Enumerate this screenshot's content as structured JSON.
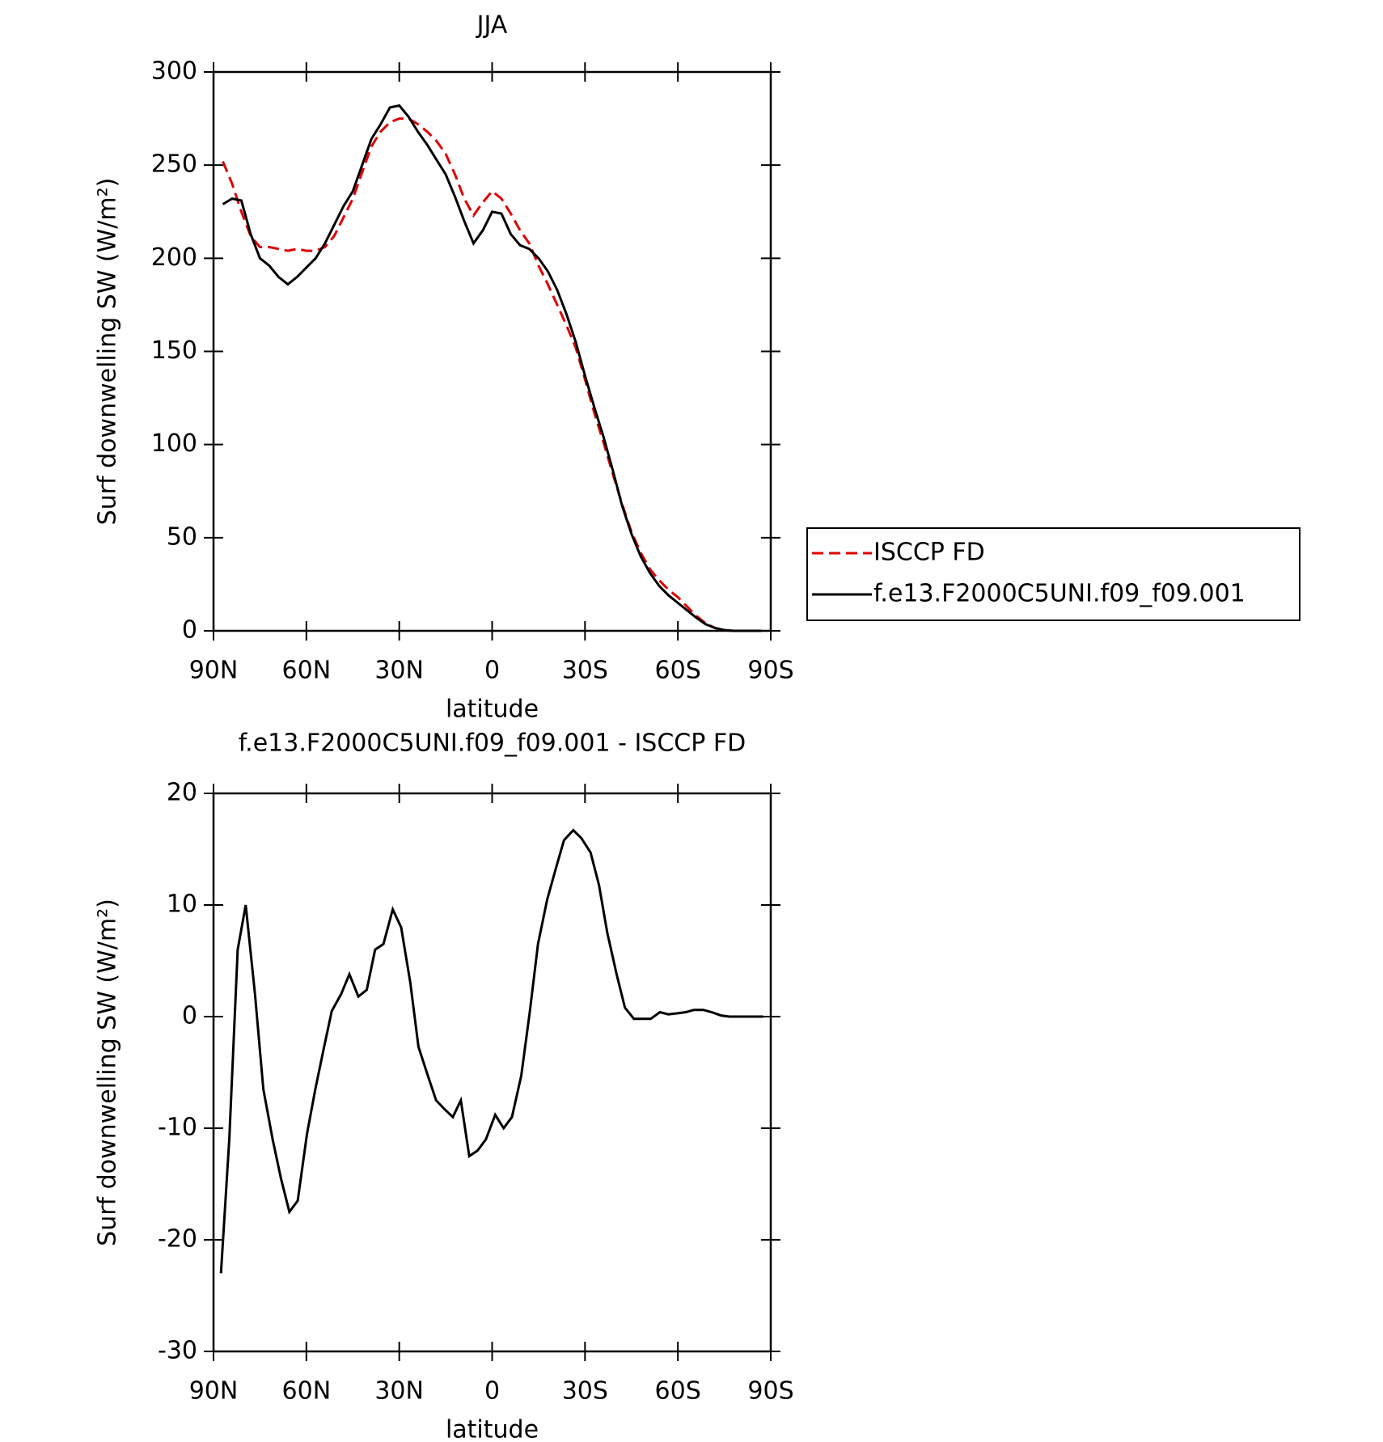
{
  "chart_data": [
    {
      "type": "line",
      "title": "JJA",
      "xlabel": "latitude",
      "ylabel": "Surf downwelling SW (W/m²)",
      "xlim": [
        90,
        -90
      ],
      "ylim": [
        0,
        300
      ],
      "xticks": [
        {
          "value": 90,
          "label": "90N"
        },
        {
          "value": 60,
          "label": "60N"
        },
        {
          "value": 30,
          "label": "30N"
        },
        0,
        {
          "value": -30,
          "label": "30S"
        },
        {
          "value": -60,
          "label": "60S"
        },
        {
          "value": -90,
          "label": "90S"
        }
      ],
      "yticks": [
        0,
        50,
        100,
        150,
        200,
        250,
        300
      ],
      "legend": "right",
      "x": [
        87,
        84,
        81,
        78,
        75,
        72,
        69,
        66,
        63,
        60,
        57,
        54,
        51,
        48,
        45,
        42,
        39,
        36,
        33,
        30,
        27,
        24,
        21,
        18,
        15,
        12,
        9,
        6,
        3,
        0,
        -3,
        -6,
        -9,
        -12,
        -15,
        -18,
        -21,
        -24,
        -27,
        -30,
        -33,
        -36,
        -39,
        -42,
        -45,
        -48,
        -51,
        -54,
        -57,
        -60,
        -63,
        -66,
        -69,
        -72,
        -75,
        -78,
        -81,
        -84,
        -87
      ],
      "series": [
        {
          "name": "ISCCP FD",
          "color": "#e00000",
          "style": "dashed",
          "values": [
            252,
            240,
            225,
            212,
            206,
            206,
            205,
            204,
            205,
            204,
            204,
            206,
            212,
            222,
            232,
            246,
            260,
            268,
            273,
            275,
            275,
            272,
            268,
            263,
            256,
            245,
            232,
            223,
            230,
            236,
            232,
            224,
            215,
            208,
            196,
            186,
            175,
            164,
            152,
            135,
            117,
            101,
            84,
            68,
            53,
            42,
            33,
            27,
            22,
            18,
            13,
            8,
            4,
            1.5,
            0.3,
            0,
            0,
            0,
            0
          ]
        },
        {
          "name": "f.e13.F2000C5UNI.f09_f09.001",
          "color": "#000000",
          "style": "solid",
          "values": [
            229,
            232,
            231,
            213,
            200,
            196,
            190,
            186,
            190,
            195,
            200,
            208,
            218,
            228,
            236,
            250,
            264,
            272,
            281,
            282,
            276,
            268,
            261,
            253,
            245,
            233,
            220,
            208,
            215,
            225,
            224,
            213,
            207,
            205,
            200,
            193,
            183,
            170,
            155,
            137,
            120,
            104,
            86,
            67,
            52,
            40,
            31,
            24,
            19,
            15,
            11,
            7,
            3.5,
            1.5,
            0.4,
            0,
            0,
            0,
            0
          ]
        }
      ]
    },
    {
      "type": "line",
      "title": "f.e13.F2000C5UNI.f09_f09.001 - ISCCP FD",
      "xlabel": "latitude",
      "ylabel": "Surf downwelling SW (W/m²)",
      "xlim": [
        90,
        -90
      ],
      "ylim": [
        -30,
        20
      ],
      "xticks": [
        {
          "value": 90,
          "label": "90N"
        },
        {
          "value": 60,
          "label": "60N"
        },
        {
          "value": 30,
          "label": "30N"
        },
        0,
        {
          "value": -30,
          "label": "30S"
        },
        {
          "value": -60,
          "label": "60S"
        },
        {
          "value": -90,
          "label": "90S"
        }
      ],
      "yticks": [
        -30,
        -20,
        -10,
        0,
        10,
        20
      ],
      "x": [
        87.6,
        84.9,
        82.2,
        79.6,
        76.6,
        73.9,
        70.9,
        68.2,
        65.5,
        62.8,
        59.8,
        57.1,
        54.5,
        51.8,
        48.8,
        46.1,
        43.2,
        40.5,
        37.8,
        35.1,
        32.1,
        29.4,
        26.4,
        23.8,
        21.1,
        18.1,
        15.4,
        12.7,
        10.1,
        7.4,
        4.7,
        2.0,
        -1.0,
        -3.7,
        -6.4,
        -9.4,
        -12.2,
        -14.8,
        -17.8,
        -20.5,
        -23.2,
        -26.2,
        -28.8,
        -31.8,
        -34.5,
        -37.2,
        -40.2,
        -42.9,
        -45.8,
        -48.5,
        -51.2,
        -54.2,
        -56.9,
        -59.9,
        -62.6,
        -65.2,
        -68.2,
        -70.9,
        -73.9,
        -76.6,
        -79.3,
        -82.3,
        -85.0,
        -87.6
      ],
      "series": [
        {
          "color": "#000000",
          "style": "solid",
          "values": [
            -23,
            -11,
            6,
            10,
            2,
            -6.5,
            -11,
            -14.5,
            -17.5,
            -16.5,
            -10.5,
            -6.5,
            -3,
            0.5,
            2,
            3.8,
            1.8,
            2.4,
            6,
            6.5,
            9.6,
            8,
            3,
            -2.7,
            -5,
            -7.5,
            -8.3,
            -9,
            -7.5,
            -12.5,
            -12,
            -11,
            -8.8,
            -10,
            -9,
            -5.3,
            0.5,
            6.5,
            10.5,
            13.2,
            15.8,
            16.7,
            16,
            14.7,
            11.8,
            7.5,
            3.8,
            0.8,
            -0.2,
            -0.2,
            -0.2,
            0.4,
            0.2,
            0.3,
            0.4,
            0.6,
            0.6,
            0.4,
            0.1,
            0,
            0,
            0,
            0,
            0
          ]
        }
      ]
    }
  ]
}
